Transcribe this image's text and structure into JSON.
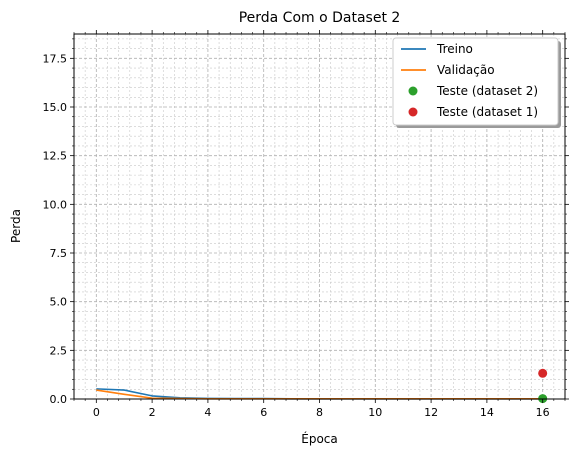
{
  "chart_data": {
    "type": "line",
    "title": "Perda Com o Dataset 2",
    "xlabel": "Época",
    "ylabel": "Perda",
    "xlim": [
      -0.8,
      16.8
    ],
    "ylim": [
      0,
      18.75
    ],
    "xticks": [
      0,
      2,
      4,
      6,
      8,
      10,
      12,
      14,
      16
    ],
    "yticks": [
      0.0,
      2.5,
      5.0,
      7.5,
      10.0,
      12.5,
      15.0,
      17.5
    ],
    "xtick_labels": [
      "0",
      "2",
      "4",
      "6",
      "8",
      "10",
      "12",
      "14",
      "16"
    ],
    "ytick_labels": [
      "0.0",
      "2.5",
      "5.0",
      "7.5",
      "10.0",
      "12.5",
      "15.0",
      "17.5"
    ],
    "grid": true,
    "minor_grid": true,
    "legend_position": "top-right",
    "series": [
      {
        "name": "Treino",
        "kind": "line",
        "color": "#1f77b4",
        "x": [
          0,
          1,
          2,
          3,
          4,
          5,
          6,
          7,
          8,
          9,
          10,
          11,
          12,
          13,
          14,
          15,
          16
        ],
        "values": [
          0.52,
          0.46,
          0.16,
          0.06,
          0.03,
          0.02,
          0.02,
          0.01,
          0.01,
          0.01,
          0.01,
          0.01,
          0.01,
          0.01,
          0.01,
          0.01,
          0.01
        ]
      },
      {
        "name": "Validação",
        "kind": "line",
        "color": "#ff7f0e",
        "x": [
          0,
          1,
          2,
          3,
          4,
          5,
          6,
          7,
          8,
          9,
          10,
          11,
          12,
          13,
          14,
          15,
          16
        ],
        "values": [
          0.46,
          0.24,
          0.04,
          0.02,
          0.01,
          0.01,
          0.01,
          0.01,
          0.01,
          0.01,
          0.01,
          0.01,
          0.01,
          0.01,
          0.01,
          0.01,
          0.01
        ]
      },
      {
        "name": "Teste (dataset 2)",
        "kind": "point",
        "color": "#2ca02c",
        "x": [
          16
        ],
        "values": [
          0.02
        ]
      },
      {
        "name": "Teste (dataset 1)",
        "kind": "point",
        "color": "#d62728",
        "x": [
          16
        ],
        "values": [
          1.32
        ]
      }
    ]
  }
}
